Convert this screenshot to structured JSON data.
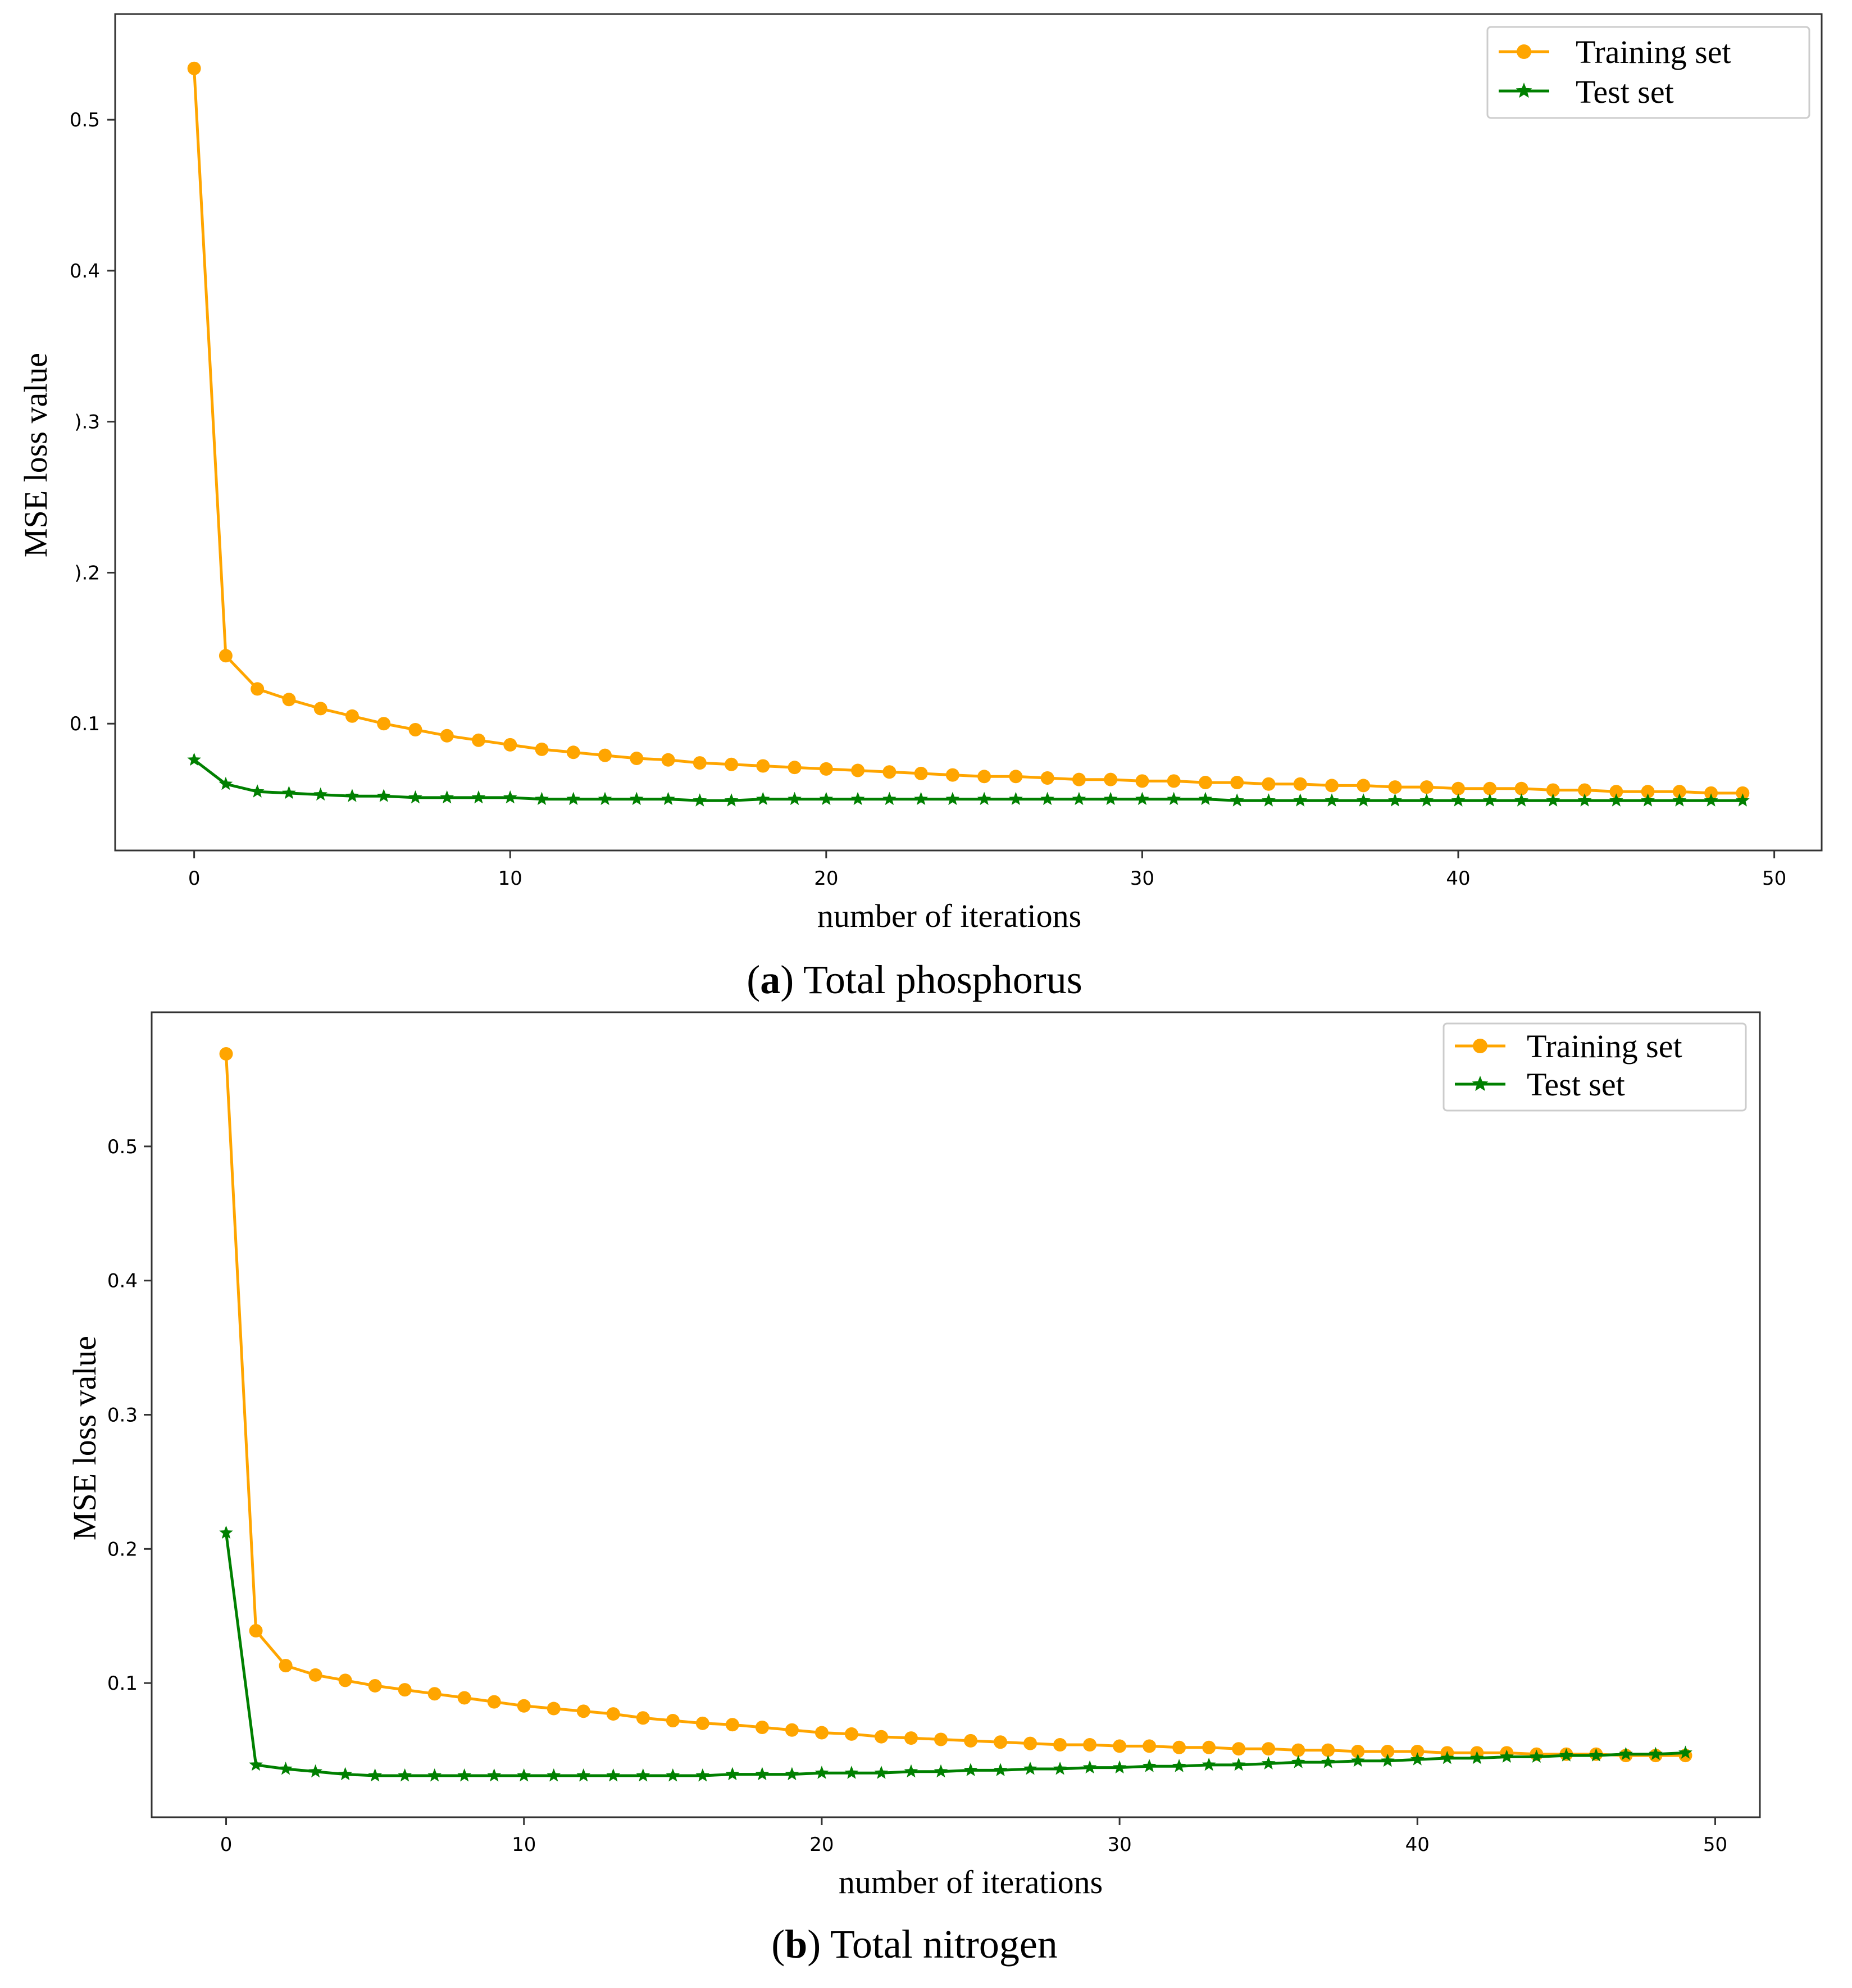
{
  "colors": {
    "training": "#FFA500",
    "test": "#008000",
    "axis": "#333333"
  },
  "chart_data": [
    {
      "type": "line",
      "caption_letter": "a",
      "caption_open": "(",
      "caption_close": ") Total phosphorus",
      "xlabel": "number of iterations",
      "ylabel": "MSE loss value",
      "xlim": [
        -2.5,
        51.5
      ],
      "ylim": [
        0.016,
        0.57
      ],
      "xticks": [
        0,
        10,
        20,
        30,
        40,
        50
      ],
      "xtick_labels": [
        "0",
        "10",
        "20",
        "30",
        "40",
        "50"
      ],
      "yticks": [
        0.1,
        0.2,
        0.3,
        0.4,
        0.5
      ],
      "ytick_labels": [
        "0.1",
        ").2",
        ").3",
        "0.4",
        "0.5"
      ],
      "legend_position": "top-right",
      "series": [
        {
          "name": "Training set",
          "key": "training",
          "marker": "circle",
          "values": [
            0.534,
            0.145,
            0.123,
            0.116,
            0.11,
            0.105,
            0.1,
            0.096,
            0.092,
            0.089,
            0.086,
            0.083,
            0.081,
            0.079,
            0.077,
            0.076,
            0.074,
            0.073,
            0.072,
            0.071,
            0.07,
            0.069,
            0.068,
            0.067,
            0.066,
            0.065,
            0.065,
            0.064,
            0.063,
            0.063,
            0.062,
            0.062,
            0.061,
            0.061,
            0.06,
            0.06,
            0.059,
            0.059,
            0.058,
            0.058,
            0.057,
            0.057,
            0.057,
            0.056,
            0.056,
            0.055,
            0.055,
            0.055,
            0.054,
            0.054
          ]
        },
        {
          "name": "Test set",
          "key": "test",
          "marker": "star",
          "values": [
            0.076,
            0.06,
            0.055,
            0.054,
            0.053,
            0.052,
            0.052,
            0.051,
            0.051,
            0.051,
            0.051,
            0.05,
            0.05,
            0.05,
            0.05,
            0.05,
            0.049,
            0.049,
            0.05,
            0.05,
            0.05,
            0.05,
            0.05,
            0.05,
            0.05,
            0.05,
            0.05,
            0.05,
            0.05,
            0.05,
            0.05,
            0.05,
            0.05,
            0.049,
            0.049,
            0.049,
            0.049,
            0.049,
            0.049,
            0.049,
            0.049,
            0.049,
            0.049,
            0.049,
            0.049,
            0.049,
            0.049,
            0.049,
            0.049,
            0.049
          ]
        }
      ]
    },
    {
      "type": "line",
      "caption_letter": "b",
      "caption_open": "(",
      "caption_close": ") Total nitrogen",
      "xlabel": "number of iterations",
      "ylabel": "MSE loss value",
      "xlim": [
        -2.5,
        51.5
      ],
      "ylim": [
        0.0,
        0.6
      ],
      "xticks": [
        0,
        10,
        20,
        30,
        40,
        50
      ],
      "xtick_labels": [
        "0",
        "10",
        "20",
        "30",
        "40",
        "50"
      ],
      "yticks": [
        0.1,
        0.2,
        0.3,
        0.4,
        0.5
      ],
      "ytick_labels": [
        "0.1",
        "0.2",
        "0.3",
        "0.4",
        "0.5"
      ],
      "legend_position": "top-right",
      "series": [
        {
          "name": "Training set",
          "key": "training",
          "marker": "circle",
          "values": [
            0.569,
            0.139,
            0.113,
            0.106,
            0.102,
            0.098,
            0.095,
            0.092,
            0.089,
            0.086,
            0.083,
            0.081,
            0.079,
            0.077,
            0.074,
            0.072,
            0.07,
            0.069,
            0.067,
            0.065,
            0.063,
            0.062,
            0.06,
            0.059,
            0.058,
            0.057,
            0.056,
            0.055,
            0.054,
            0.054,
            0.053,
            0.053,
            0.052,
            0.052,
            0.051,
            0.051,
            0.05,
            0.05,
            0.049,
            0.049,
            0.049,
            0.048,
            0.048,
            0.048,
            0.047,
            0.047,
            0.047,
            0.046,
            0.046,
            0.046
          ]
        },
        {
          "name": "Test set",
          "key": "test",
          "marker": "star",
          "values": [
            0.212,
            0.039,
            0.036,
            0.034,
            0.032,
            0.031,
            0.031,
            0.031,
            0.031,
            0.031,
            0.031,
            0.031,
            0.031,
            0.031,
            0.031,
            0.031,
            0.031,
            0.032,
            0.032,
            0.032,
            0.033,
            0.033,
            0.033,
            0.034,
            0.034,
            0.035,
            0.035,
            0.036,
            0.036,
            0.037,
            0.037,
            0.038,
            0.038,
            0.039,
            0.039,
            0.04,
            0.041,
            0.041,
            0.042,
            0.042,
            0.043,
            0.044,
            0.044,
            0.045,
            0.045,
            0.046,
            0.046,
            0.047,
            0.047,
            0.048
          ]
        }
      ]
    }
  ]
}
